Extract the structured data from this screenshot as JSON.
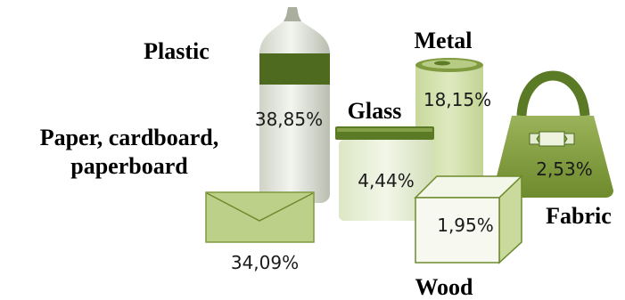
{
  "chart_data": {
    "type": "pictograph",
    "title": "",
    "categories": [
      "Plastic",
      "Paper, cardboard, paperboard",
      "Glass",
      "Metal",
      "Fabric",
      "Wood"
    ],
    "values": [
      38.85,
      34.09,
      4.44,
      18.15,
      2.53,
      1.95
    ],
    "value_labels": [
      "38,85%",
      "34,09%",
      "4,44%",
      "18,15%",
      "2,53%",
      "1,95%"
    ],
    "category_lines": [
      [
        "Plastic"
      ],
      [
        "Paper, cardboard,",
        "paperboard"
      ],
      [
        "Glass"
      ],
      [
        "Metal"
      ],
      [
        "Fabric"
      ],
      [
        "Wood"
      ]
    ],
    "unit": "%",
    "colors": {
      "dark_green": "#4e6a1f",
      "mid_green": "#7f9a3f",
      "light_green": "#c6d79e",
      "pale_green": "#e4ecd0",
      "bottle_glass": "#dfe3da"
    }
  }
}
